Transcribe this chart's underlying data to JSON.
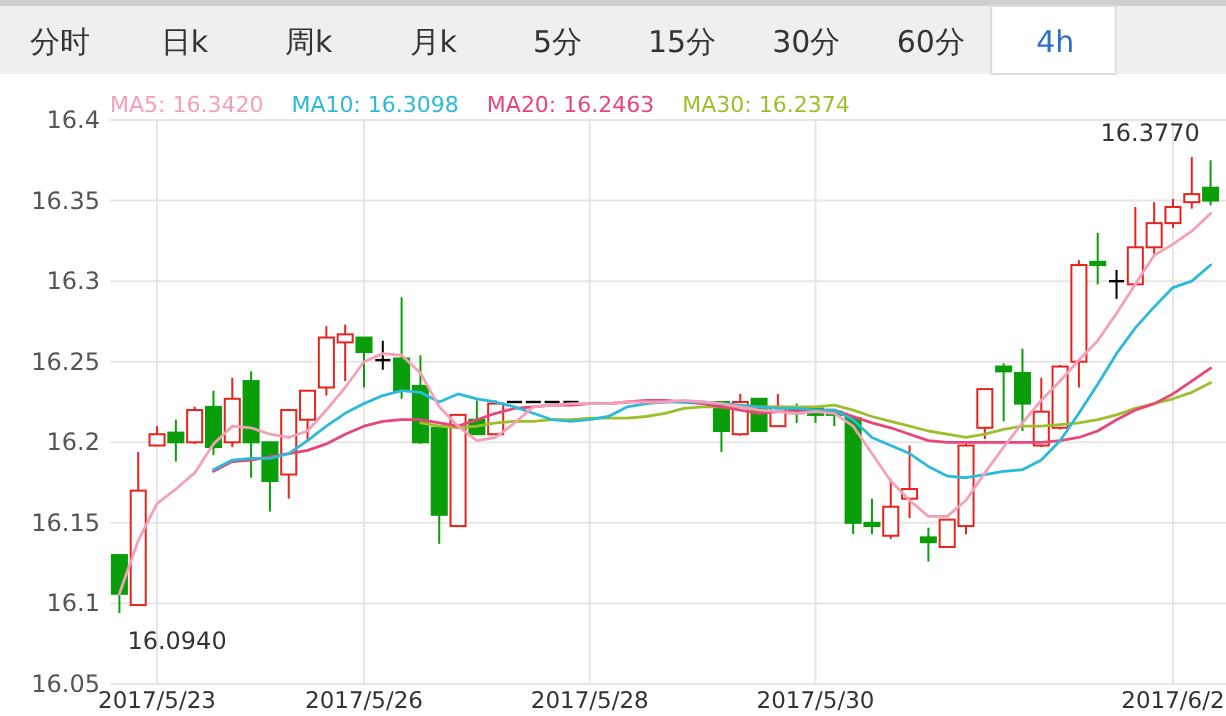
{
  "chart_data": {
    "type": "candlestick",
    "categories": [
      null,
      null,
      "2017/5/23",
      null,
      null,
      null,
      null,
      null,
      null,
      null,
      null,
      null,
      null,
      "2017/5/26",
      null,
      null,
      null,
      null,
      null,
      null,
      null,
      null,
      null,
      null,
      null,
      "2017/5/28",
      null,
      null,
      null,
      null,
      null,
      null,
      null,
      null,
      null,
      null,
      null,
      "2017/5/30",
      null,
      null,
      null,
      null,
      null,
      null,
      null,
      null,
      null,
      null,
      null,
      null,
      null,
      null,
      null,
      null,
      null,
      null,
      "2017/6/2",
      null,
      null
    ],
    "ohlc": [
      [
        16.13,
        16.13,
        16.094,
        16.106
      ],
      [
        16.099,
        16.194,
        16.099,
        16.17
      ],
      [
        16.198,
        16.21,
        16.198,
        16.205
      ],
      [
        16.206,
        16.214,
        16.188,
        16.2
      ],
      [
        16.2,
        16.222,
        16.199,
        16.22
      ],
      [
        16.222,
        16.232,
        16.192,
        16.197
      ],
      [
        16.2,
        16.24,
        16.197,
        16.227
      ],
      [
        16.238,
        16.244,
        16.178,
        16.2
      ],
      [
        16.2,
        16.2,
        16.157,
        16.176
      ],
      [
        16.18,
        16.22,
        16.165,
        16.22
      ],
      [
        16.214,
        16.232,
        16.201,
        16.232
      ],
      [
        16.234,
        16.272,
        16.229,
        16.265
      ],
      [
        16.262,
        16.273,
        16.238,
        16.267
      ],
      [
        16.265,
        16.265,
        16.234,
        16.256
      ],
      [
        16.251,
        16.263,
        16.245,
        16.251
      ],
      [
        16.252,
        16.29,
        16.227,
        16.232
      ],
      [
        16.235,
        16.254,
        16.199,
        16.2
      ],
      [
        16.209,
        16.209,
        16.137,
        16.155
      ],
      [
        16.148,
        16.217,
        16.148,
        16.217
      ],
      [
        16.214,
        16.226,
        16.205,
        16.205
      ],
      [
        16.205,
        16.226,
        16.205,
        16.224
      ],
      [
        16.225,
        16.225,
        16.225,
        16.225
      ],
      [
        16.225,
        16.225,
        16.225,
        16.225
      ],
      [
        16.225,
        16.225,
        16.225,
        16.225
      ],
      [
        16.225,
        16.225,
        16.225,
        16.225
      ],
      null,
      null,
      null,
      null,
      null,
      null,
      null,
      [
        16.225,
        16.225,
        16.194,
        16.207
      ],
      [
        16.205,
        16.23,
        16.204,
        16.225
      ],
      [
        16.227,
        16.227,
        16.207,
        16.207
      ],
      [
        16.21,
        16.23,
        16.21,
        16.222
      ],
      [
        16.22,
        16.224,
        16.212,
        16.218
      ],
      [
        16.221,
        16.222,
        16.212,
        16.217
      ],
      [
        16.219,
        16.22,
        16.21,
        16.217
      ],
      [
        16.215,
        16.215,
        16.143,
        16.15
      ],
      [
        16.15,
        16.165,
        16.143,
        16.148
      ],
      [
        16.142,
        16.177,
        16.14,
        16.16
      ],
      [
        16.165,
        16.198,
        16.153,
        16.171
      ],
      [
        16.141,
        16.147,
        16.126,
        16.138
      ],
      [
        16.135,
        16.152,
        16.135,
        16.152
      ],
      [
        16.148,
        16.199,
        16.143,
        16.198
      ],
      [
        16.209,
        16.233,
        16.202,
        16.233
      ],
      [
        16.247,
        16.249,
        16.213,
        16.244
      ],
      [
        16.243,
        16.258,
        16.207,
        16.224
      ],
      [
        16.198,
        16.24,
        16.197,
        16.219
      ],
      [
        16.209,
        16.248,
        16.208,
        16.247
      ],
      [
        16.25,
        16.313,
        16.234,
        16.31
      ],
      [
        16.312,
        16.33,
        16.298,
        16.31
      ],
      [
        16.3,
        16.307,
        16.289,
        16.3
      ],
      [
        16.298,
        16.346,
        16.298,
        16.321
      ],
      [
        16.321,
        16.349,
        16.317,
        16.336
      ],
      [
        16.336,
        16.351,
        16.333,
        16.346
      ],
      [
        16.349,
        16.377,
        16.345,
        16.354
      ],
      [
        16.358,
        16.375,
        16.347,
        16.35
      ]
    ],
    "series": [
      {
        "name": "MA5: 16.3420",
        "type": "line",
        "color": "#f4a0b9",
        "values": [
          16.106,
          16.139,
          16.162,
          16.171,
          16.181,
          16.199,
          16.21,
          16.209,
          16.205,
          16.203,
          16.207,
          16.22,
          16.234,
          16.25,
          16.255,
          16.254,
          16.243,
          16.222,
          16.21,
          16.201,
          16.203,
          16.212,
          16.222,
          16.223,
          16.224,
          16.224,
          16.224,
          16.225,
          16.225,
          16.225,
          16.226,
          16.225,
          16.224,
          16.222,
          16.22,
          16.219,
          16.218,
          16.219,
          16.218,
          16.21,
          16.193,
          16.176,
          16.164,
          16.154,
          16.154,
          16.164,
          16.181,
          16.197,
          16.212,
          16.226,
          16.238,
          16.251,
          16.263,
          16.28,
          16.298,
          16.316,
          16.323,
          16.331,
          16.342
        ]
      },
      {
        "name": "MA10: 16.3098",
        "type": "line",
        "color": "#2bbbd8",
        "values": [
          null,
          null,
          null,
          null,
          null,
          16.183,
          16.189,
          16.19,
          16.19,
          16.193,
          16.201,
          16.21,
          16.218,
          16.224,
          16.229,
          16.232,
          16.231,
          16.225,
          16.23,
          16.227,
          16.225,
          16.222,
          16.218,
          16.214,
          16.213,
          16.214,
          16.216,
          16.222,
          16.224,
          16.225,
          16.225,
          16.225,
          16.224,
          16.223,
          16.222,
          16.221,
          16.221,
          16.22,
          16.22,
          16.214,
          16.203,
          16.198,
          16.193,
          16.185,
          16.179,
          16.178,
          16.18,
          16.182,
          16.183,
          16.189,
          16.201,
          16.218,
          16.236,
          16.255,
          16.271,
          16.284,
          16.296,
          16.3,
          16.31
        ]
      },
      {
        "name": "MA20: 16.2463",
        "type": "line",
        "color": "#e8457a",
        "values": [
          null,
          null,
          null,
          null,
          null,
          16.182,
          16.188,
          16.189,
          16.191,
          16.193,
          16.195,
          16.199,
          16.205,
          16.21,
          16.213,
          16.214,
          16.214,
          16.212,
          16.21,
          16.214,
          16.218,
          16.221,
          16.222,
          16.223,
          16.223,
          16.224,
          16.224,
          16.225,
          16.226,
          16.226,
          16.225,
          16.224,
          16.222,
          16.22,
          16.218,
          16.219,
          16.219,
          16.22,
          16.22,
          16.216,
          16.212,
          16.209,
          16.205,
          16.201,
          16.2,
          16.2,
          16.2,
          16.2,
          16.2,
          16.2,
          16.201,
          16.203,
          16.207,
          16.214,
          16.22,
          16.224,
          16.23,
          16.238,
          16.246
        ]
      },
      {
        "name": "MA30: 16.2374",
        "type": "line",
        "color": "#9cbf2b",
        "values": [
          null,
          null,
          null,
          null,
          null,
          null,
          null,
          null,
          null,
          null,
          null,
          null,
          null,
          null,
          null,
          null,
          16.212,
          16.21,
          16.209,
          16.21,
          16.212,
          16.213,
          16.213,
          16.214,
          16.214,
          16.215,
          16.215,
          16.215,
          16.216,
          16.218,
          16.221,
          16.222,
          16.222,
          16.222,
          16.222,
          16.222,
          16.222,
          16.222,
          16.223,
          16.22,
          16.216,
          16.213,
          16.21,
          16.207,
          16.205,
          16.203,
          16.205,
          16.208,
          16.21,
          16.21,
          16.211,
          16.212,
          16.214,
          16.217,
          16.221,
          16.224,
          16.227,
          16.231,
          16.237
        ]
      }
    ],
    "ylim": [
      16.05,
      16.4
    ],
    "yticks": [
      16.05,
      16.1,
      16.15,
      16.2,
      16.25,
      16.3,
      16.35,
      16.4
    ],
    "grid": true,
    "legend": "top left",
    "annotations": [
      "分时",
      "日k",
      "周k",
      "月k",
      "5分",
      "15分",
      "30分",
      "60分",
      "4h",
      "16.0940",
      "16.3770"
    ]
  }
}
